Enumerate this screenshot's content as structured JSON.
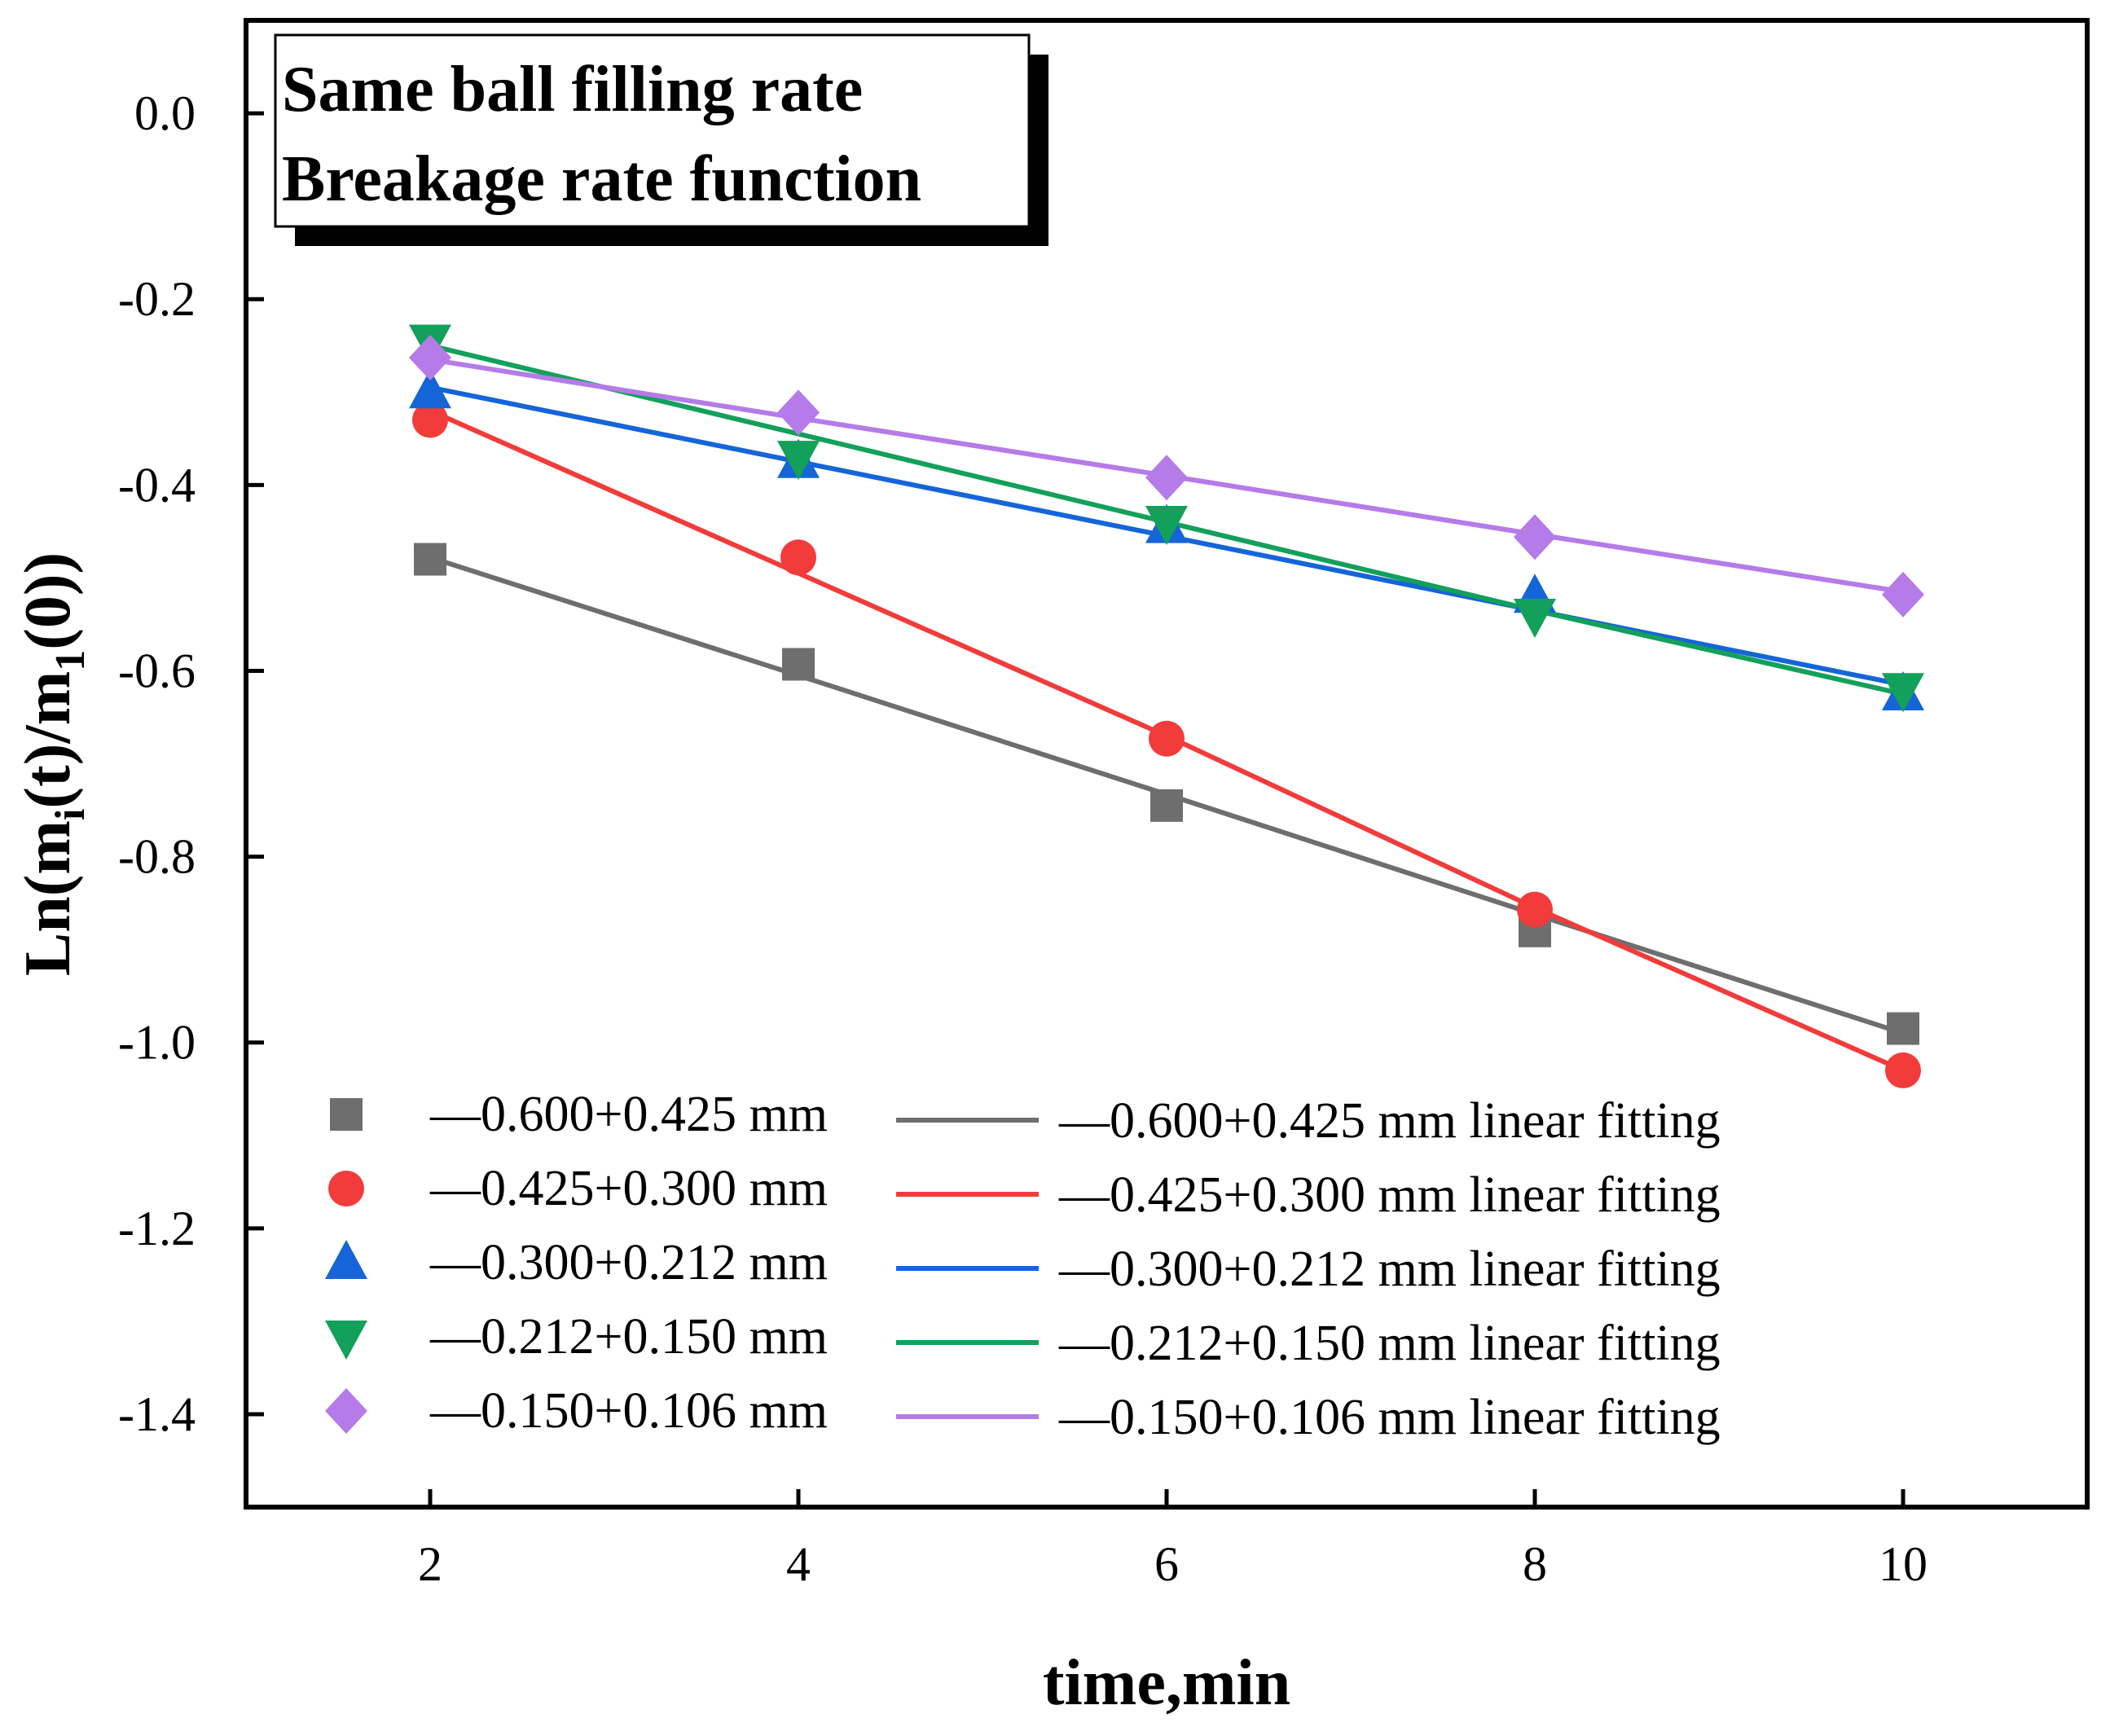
{
  "chart_data": {
    "type": "scatter",
    "title_lines": [
      "Same ball filling rate",
      "Breakage rate function"
    ],
    "xlabel": "time,min",
    "ylabel_parts": {
      "base": "Ln(m",
      "sub1": "i",
      "mid": "(t)/m",
      "sub2": "1",
      "end": "(0))"
    },
    "xlim": [
      1.0,
      11.0
    ],
    "ylim": [
      -1.5,
      0.1
    ],
    "xticks": [
      2,
      4,
      6,
      8,
      10
    ],
    "xtick_labels": [
      "2",
      "4",
      "6",
      "8",
      "10"
    ],
    "yticks": [
      0.0,
      -0.2,
      -0.4,
      -0.6,
      -0.8,
      -1.0,
      -1.2,
      -1.4
    ],
    "ytick_labels": [
      "0.0",
      "-0.2",
      "-0.4",
      "-0.6",
      "-0.8",
      "-1.0",
      "-1.2",
      "-1.4"
    ],
    "x": [
      2,
      4,
      6,
      8,
      10
    ],
    "series": [
      {
        "name": "—0.600+0.425 mm",
        "fit_name": "—0.600+0.425 mm linear fitting",
        "marker": "square",
        "color": "#6e6e6e",
        "values": [
          -0.48,
          -0.593,
          -0.745,
          -0.88,
          -0.985
        ],
        "fit": [
          -0.478,
          -0.605,
          -0.733,
          -0.862,
          -0.99
        ]
      },
      {
        "name": "—0.425+0.300 mm",
        "fit_name": "—0.425+0.300 mm linear fitting",
        "marker": "circle",
        "color": "#f23b3b",
        "values": [
          -0.33,
          -0.478,
          -0.673,
          -0.857,
          -1.03
        ],
        "fit": [
          -0.32,
          -0.495,
          -0.67,
          -0.855,
          -1.03
        ]
      },
      {
        "name": "—0.300+0.212 mm",
        "fit_name": "—0.300+0.212 mm linear fitting",
        "marker": "triangle-up",
        "color": "#1565d8",
        "values": [
          -0.3,
          -0.375,
          -0.445,
          -0.52,
          -0.625
        ],
        "fit": [
          -0.295,
          -0.375,
          -0.455,
          -0.535,
          -0.615
        ]
      },
      {
        "name": "—0.212+0.150 mm",
        "fit_name": "—0.212+0.150 mm linear fitting",
        "marker": "triangle-down",
        "color": "#13a05a",
        "values": [
          -0.245,
          -0.37,
          -0.44,
          -0.54,
          -0.62
        ],
        "fit": [
          -0.25,
          -0.345,
          -0.44,
          -0.535,
          -0.625
        ]
      },
      {
        "name": "—0.150+0.106 mm",
        "fit_name": "—0.150+0.106 mm linear fitting",
        "marker": "diamond",
        "color": "#b57be8",
        "values": [
          -0.263,
          -0.322,
          -0.392,
          -0.456,
          -0.518
        ],
        "fit": [
          -0.265,
          -0.328,
          -0.39,
          -0.453,
          -0.515
        ]
      }
    ]
  }
}
